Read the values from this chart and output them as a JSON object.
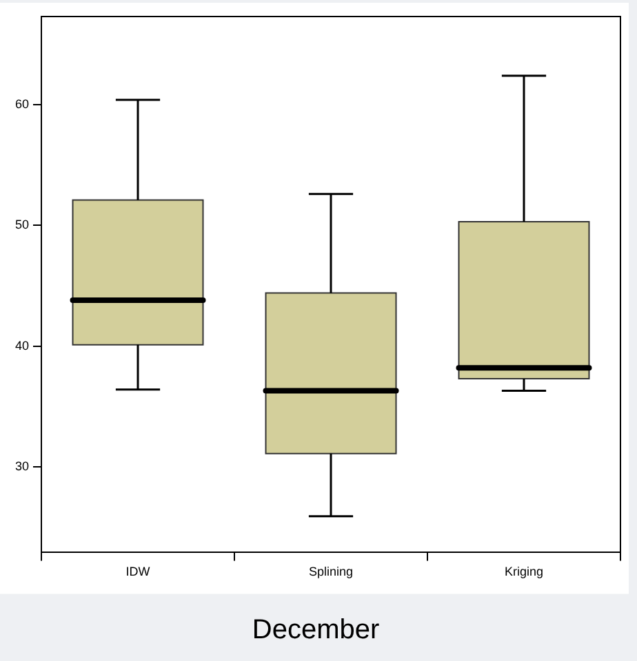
{
  "chart_data": {
    "type": "box",
    "title": "December",
    "categories": [
      "IDW",
      "Splining",
      "Kriging"
    ],
    "series": [
      {
        "color": "#d3cf9b",
        "boxes": [
          {
            "low": 36.4,
            "q1": 40.1,
            "median": 43.8,
            "q3": 52.1,
            "high": 60.4
          },
          {
            "low": 25.9,
            "q1": 31.1,
            "median": 36.3,
            "q3": 44.4,
            "high": 52.6
          },
          {
            "low": 36.3,
            "q1": 37.3,
            "median": 38.2,
            "q3": 50.3,
            "high": 62.4
          }
        ]
      }
    ],
    "ylim": [
      22.9,
      67.3
    ],
    "yticks": [
      30,
      40,
      50,
      60
    ],
    "grid": false,
    "legend": false
  }
}
